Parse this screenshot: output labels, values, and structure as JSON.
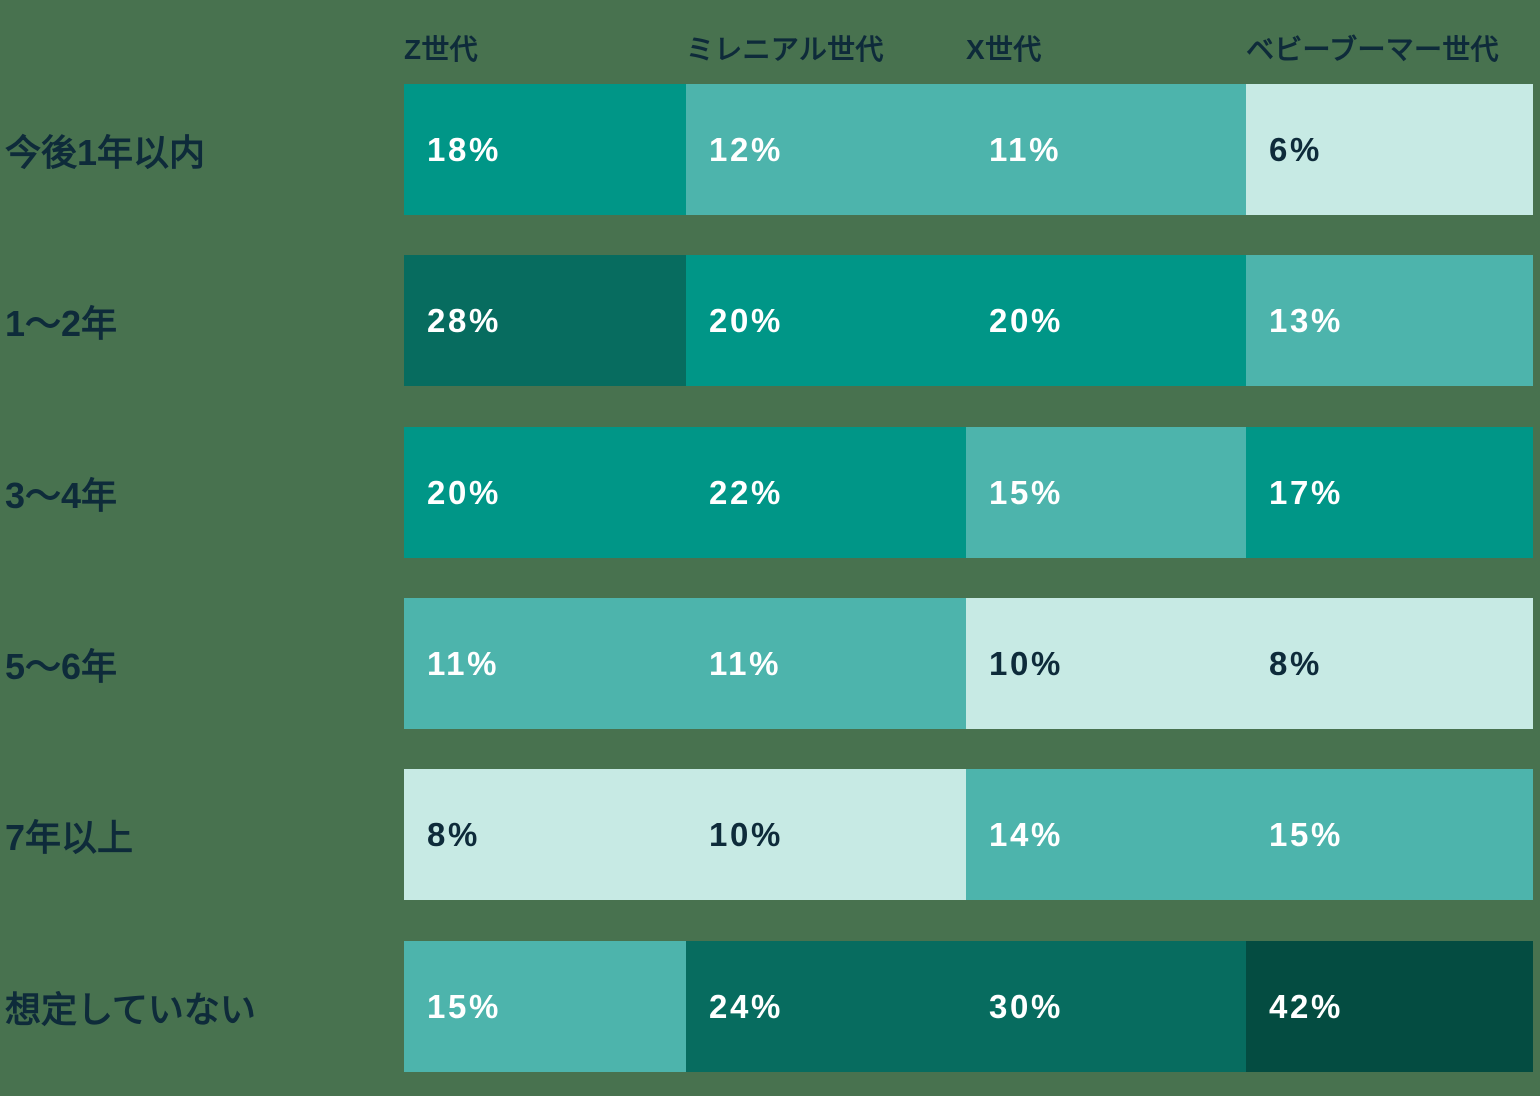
{
  "colors": {
    "background": "#48724F",
    "heading_text": "#0E2B3A",
    "cell_text_on_dark": "#FFFFFF",
    "cell_text_on_light": "#0E2B3A",
    "scale": {
      "lightest_low": "#C7EAE4",
      "light_mid": "#4DB4AC",
      "mid": "#009687",
      "dark": "#076C5F",
      "darkest_high": "#044C41"
    }
  },
  "columns": [
    {
      "label": "Z世代"
    },
    {
      "label": "ミレニアル世代"
    },
    {
      "label": "X世代"
    },
    {
      "label": "ベビーブーマー世代"
    }
  ],
  "rows": [
    {
      "label": "今後1年以内",
      "cells": [
        {
          "label": "18%",
          "bg": "#009687",
          "fg": "#FFFFFF"
        },
        {
          "label": "12%",
          "bg": "#4DB4AC",
          "fg": "#FFFFFF"
        },
        {
          "label": "11%",
          "bg": "#4DB4AC",
          "fg": "#FFFFFF"
        },
        {
          "label": "6%",
          "bg": "#C7EAE4",
          "fg": "#0E2B3A"
        }
      ]
    },
    {
      "label": "1〜2年",
      "cells": [
        {
          "label": "28%",
          "bg": "#076C5F",
          "fg": "#FFFFFF"
        },
        {
          "label": "20%",
          "bg": "#009687",
          "fg": "#FFFFFF"
        },
        {
          "label": "20%",
          "bg": "#009687",
          "fg": "#FFFFFF"
        },
        {
          "label": "13%",
          "bg": "#4DB4AC",
          "fg": "#FFFFFF"
        }
      ]
    },
    {
      "label": "3〜4年",
      "cells": [
        {
          "label": "20%",
          "bg": "#009687",
          "fg": "#FFFFFF"
        },
        {
          "label": "22%",
          "bg": "#009687",
          "fg": "#FFFFFF"
        },
        {
          "label": "15%",
          "bg": "#4DB4AC",
          "fg": "#FFFFFF"
        },
        {
          "label": "17%",
          "bg": "#009687",
          "fg": "#FFFFFF"
        }
      ]
    },
    {
      "label": "5〜6年",
      "cells": [
        {
          "label": "11%",
          "bg": "#4DB4AC",
          "fg": "#FFFFFF"
        },
        {
          "label": "11%",
          "bg": "#4DB4AC",
          "fg": "#FFFFFF"
        },
        {
          "label": "10%",
          "bg": "#C7EAE4",
          "fg": "#0E2B3A"
        },
        {
          "label": "8%",
          "bg": "#C7EAE4",
          "fg": "#0E2B3A"
        }
      ]
    },
    {
      "label": "7年以上",
      "cells": [
        {
          "label": "8%",
          "bg": "#C7EAE4",
          "fg": "#0E2B3A"
        },
        {
          "label": "10%",
          "bg": "#C7EAE4",
          "fg": "#0E2B3A"
        },
        {
          "label": "14%",
          "bg": "#4DB4AC",
          "fg": "#FFFFFF"
        },
        {
          "label": "15%",
          "bg": "#4DB4AC",
          "fg": "#FFFFFF"
        }
      ]
    },
    {
      "label": "想定していない",
      "cells": [
        {
          "label": "15%",
          "bg": "#4DB4AC",
          "fg": "#FFFFFF"
        },
        {
          "label": "24%",
          "bg": "#076C5F",
          "fg": "#FFFFFF"
        },
        {
          "label": "30%",
          "bg": "#076C5F",
          "fg": "#FFFFFF"
        },
        {
          "label": "42%",
          "bg": "#044C41",
          "fg": "#FFFFFF"
        }
      ]
    }
  ],
  "chart_data": {
    "type": "heatmap",
    "title": "",
    "unit": "%",
    "columns": [
      "Z世代",
      "ミレニアル世代",
      "X世代",
      "ベビーブーマー世代"
    ],
    "row_categories": [
      "今後1年以内",
      "1〜2年",
      "3〜4年",
      "5〜6年",
      "7年以上",
      "想定していない"
    ],
    "values_by_row": [
      [
        18,
        12,
        11,
        6
      ],
      [
        28,
        20,
        20,
        13
      ],
      [
        20,
        22,
        15,
        17
      ],
      [
        11,
        11,
        10,
        8
      ],
      [
        8,
        10,
        14,
        15
      ],
      [
        15,
        24,
        30,
        42
      ]
    ],
    "series": [
      {
        "name": "Z世代",
        "values": [
          18,
          28,
          20,
          11,
          8,
          15
        ]
      },
      {
        "name": "ミレニアル世代",
        "values": [
          12,
          20,
          22,
          11,
          10,
          24
        ]
      },
      {
        "name": "X世代",
        "values": [
          11,
          20,
          15,
          10,
          14,
          30
        ]
      },
      {
        "name": "ベビーブーマー世代",
        "values": [
          6,
          13,
          17,
          8,
          15,
          42
        ]
      }
    ],
    "color_scale": "sequential teal (light mint = low values, dark green = high values)",
    "legend": "none",
    "grid": "off"
  }
}
